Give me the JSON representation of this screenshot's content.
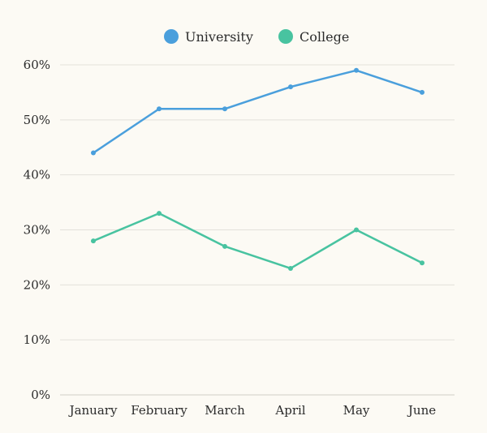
{
  "chart_data": {
    "type": "line",
    "title": "",
    "xlabel": "",
    "ylabel": "",
    "categories": [
      "January",
      "February",
      "March",
      "April",
      "May",
      "June"
    ],
    "series": [
      {
        "name": "University",
        "color": "#4a9fdc",
        "values": [
          44,
          52,
          52,
          56,
          59,
          55
        ]
      },
      {
        "name": "College",
        "color": "#48c3a0",
        "values": [
          28,
          33,
          27,
          23,
          30,
          24
        ]
      }
    ],
    "ylim": [
      0,
      60
    ],
    "yticks": [
      0,
      10,
      20,
      30,
      40,
      50,
      60
    ],
    "ytick_labels": [
      "0%",
      "10%",
      "20%",
      "30%",
      "40%",
      "50%",
      "60%"
    ],
    "grid": true,
    "legend_position": "top-center"
  }
}
